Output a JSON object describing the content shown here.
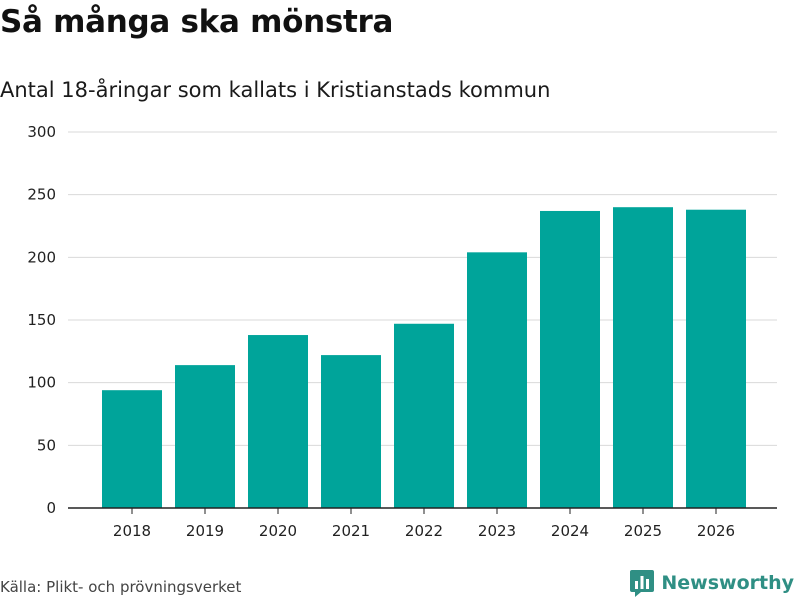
{
  "header": {
    "title": "Så många ska mönstra",
    "subtitle": "Antal 18-åringar som kallats i Kristianstads kommun"
  },
  "footer": {
    "source": "Källa: Plikt- och prövningsverket",
    "brand": "Newsworthy",
    "brand_icon": "bar-chart-icon"
  },
  "colors": {
    "bar": "#00a49a",
    "grid": "#d9d9d9",
    "axis": "#222222",
    "brand": "#2f8f84"
  },
  "chart_data": {
    "type": "bar",
    "title": "Så många ska mönstra",
    "subtitle": "Antal 18-åringar som kallats i Kristianstads kommun",
    "categories": [
      "2018",
      "2019",
      "2020",
      "2021",
      "2022",
      "2023",
      "2024",
      "2025",
      "2026"
    ],
    "values": [
      94,
      114,
      138,
      122,
      147,
      204,
      237,
      240,
      238
    ],
    "ylim": [
      0,
      300
    ],
    "yticks": [
      0,
      50,
      100,
      150,
      200,
      250,
      300
    ],
    "xlabel": "",
    "ylabel": "",
    "grid": true,
    "legend": "none"
  }
}
